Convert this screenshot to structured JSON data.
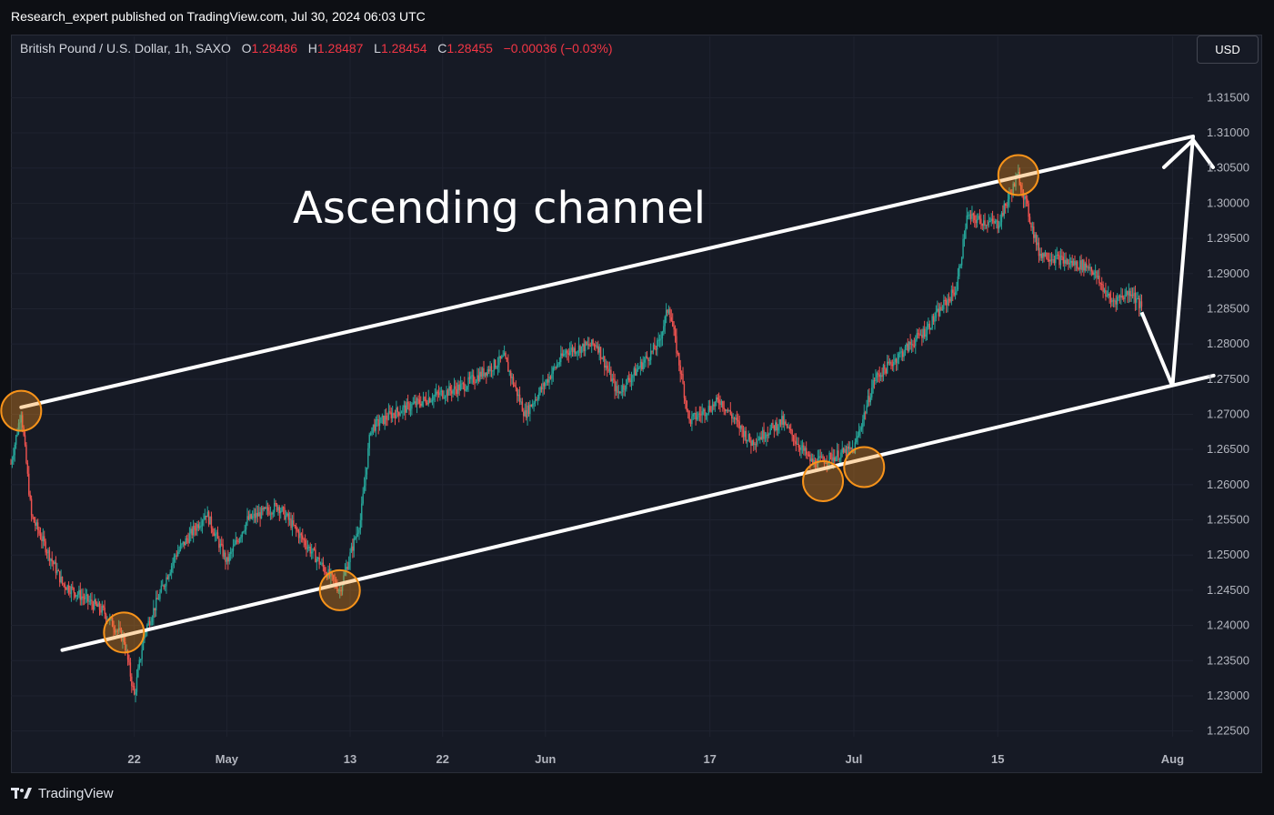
{
  "header": {
    "published": "Research_expert published on TradingView.com, Jul 30, 2024 06:03 UTC"
  },
  "legend": {
    "symbol": "British Pound / U.S. Dollar, 1h, SAXO",
    "o_label": "O",
    "o": "1.28486",
    "h_label": "H",
    "h": "1.28487",
    "l_label": "L",
    "l": "1.28454",
    "c_label": "C",
    "c": "1.28455",
    "change": "−0.00036 (−0.03%)"
  },
  "currency_button": "USD",
  "footer": {
    "brand": "TradingView",
    "logo_icon": "tradingview-logo-icon"
  },
  "colors": {
    "up": "#26a69a",
    "down": "#ef5350",
    "annotation": "#ffffff",
    "circle": "#f7931a"
  },
  "chart_data": {
    "type": "candlestick",
    "symbol": "GBPUSD",
    "timeframe": "1h",
    "x_range": [
      "2024-04-10",
      "2024-08-03"
    ],
    "ylim": [
      1.2225,
      1.3175
    ],
    "y_ticks": [
      "1.31500",
      "1.31000",
      "1.30500",
      "1.30000",
      "1.29500",
      "1.29000",
      "1.28500",
      "1.28000",
      "1.27500",
      "1.27000",
      "1.26500",
      "1.26000",
      "1.25500",
      "1.25000",
      "1.24500",
      "1.24000",
      "1.23500",
      "1.23000",
      "1.22500"
    ],
    "x_ticks": [
      {
        "label": "22",
        "date": "2024-04-22"
      },
      {
        "label": "May",
        "date": "2024-05-01"
      },
      {
        "label": "13",
        "date": "2024-05-13"
      },
      {
        "label": "22",
        "date": "2024-05-22"
      },
      {
        "label": "Jun",
        "date": "2024-06-01"
      },
      {
        "label": "17",
        "date": "2024-06-17"
      },
      {
        "label": "Jul",
        "date": "2024-07-01"
      },
      {
        "label": "15",
        "date": "2024-07-15"
      },
      {
        "label": "Aug",
        "date": "2024-08-01"
      }
    ],
    "price_path": [
      {
        "date": "2024-04-10",
        "value": 1.263
      },
      {
        "date": "2024-04-11",
        "value": 1.2705
      },
      {
        "date": "2024-04-12",
        "value": 1.2555
      },
      {
        "date": "2024-04-15",
        "value": 1.246
      },
      {
        "date": "2024-04-17",
        "value": 1.244
      },
      {
        "date": "2024-04-19",
        "value": 1.242
      },
      {
        "date": "2024-04-21",
        "value": 1.238
      },
      {
        "date": "2024-04-22",
        "value": 1.23
      },
      {
        "date": "2024-04-23",
        "value": 1.239
      },
      {
        "date": "2024-04-26",
        "value": 1.25
      },
      {
        "date": "2024-04-29",
        "value": 1.256
      },
      {
        "date": "2024-05-01",
        "value": 1.249
      },
      {
        "date": "2024-05-03",
        "value": 1.255
      },
      {
        "date": "2024-05-06",
        "value": 1.257
      },
      {
        "date": "2024-05-09",
        "value": 1.251
      },
      {
        "date": "2024-05-12",
        "value": 1.245
      },
      {
        "date": "2024-05-14",
        "value": 1.255
      },
      {
        "date": "2024-05-15",
        "value": 1.268
      },
      {
        "date": "2024-05-17",
        "value": 1.27
      },
      {
        "date": "2024-05-21",
        "value": 1.2725
      },
      {
        "date": "2024-05-24",
        "value": 1.274
      },
      {
        "date": "2024-05-28",
        "value": 1.278
      },
      {
        "date": "2024-05-30",
        "value": 1.27
      },
      {
        "date": "2024-06-03",
        "value": 1.279
      },
      {
        "date": "2024-06-06",
        "value": 1.28
      },
      {
        "date": "2024-06-08",
        "value": 1.273
      },
      {
        "date": "2024-06-12",
        "value": 1.28
      },
      {
        "date": "2024-06-13",
        "value": 1.2855
      },
      {
        "date": "2024-06-15",
        "value": 1.269
      },
      {
        "date": "2024-06-18",
        "value": 1.272
      },
      {
        "date": "2024-06-21",
        "value": 1.266
      },
      {
        "date": "2024-06-24",
        "value": 1.269
      },
      {
        "date": "2024-06-27",
        "value": 1.263
      },
      {
        "date": "2024-07-01",
        "value": 1.265
      },
      {
        "date": "2024-07-03",
        "value": 1.275
      },
      {
        "date": "2024-07-08",
        "value": 1.282
      },
      {
        "date": "2024-07-11",
        "value": 1.288
      },
      {
        "date": "2024-07-12",
        "value": 1.298
      },
      {
        "date": "2024-07-15",
        "value": 1.297
      },
      {
        "date": "2024-07-17",
        "value": 1.304
      },
      {
        "date": "2024-07-19",
        "value": 1.293
      },
      {
        "date": "2024-07-22",
        "value": 1.2915
      },
      {
        "date": "2024-07-24",
        "value": 1.291
      },
      {
        "date": "2024-07-26",
        "value": 1.286
      },
      {
        "date": "2024-07-28",
        "value": 1.2875
      },
      {
        "date": "2024-07-29",
        "value": 1.285
      }
    ],
    "annotations": {
      "label": "Ascending channel",
      "upper_line": [
        {
          "date": "2024-04-11",
          "value": 1.271
        },
        {
          "date": "2024-08-03",
          "value": 1.3095
        }
      ],
      "lower_line": [
        {
          "date": "2024-04-15",
          "value": 1.2365
        },
        {
          "date": "2024-08-05",
          "value": 1.2755
        }
      ],
      "projection": [
        {
          "date": "2024-07-29",
          "value": 1.2845
        },
        {
          "date": "2024-08-01",
          "value": 1.274
        },
        {
          "date": "2024-08-03",
          "value": 1.3095
        }
      ],
      "touch_points": [
        {
          "date": "2024-04-11",
          "value": 1.2705
        },
        {
          "date": "2024-04-21",
          "value": 1.239
        },
        {
          "date": "2024-05-12",
          "value": 1.245
        },
        {
          "date": "2024-06-28",
          "value": 1.2605
        },
        {
          "date": "2024-07-02",
          "value": 1.2625
        },
        {
          "date": "2024-07-17",
          "value": 1.304
        }
      ]
    }
  }
}
